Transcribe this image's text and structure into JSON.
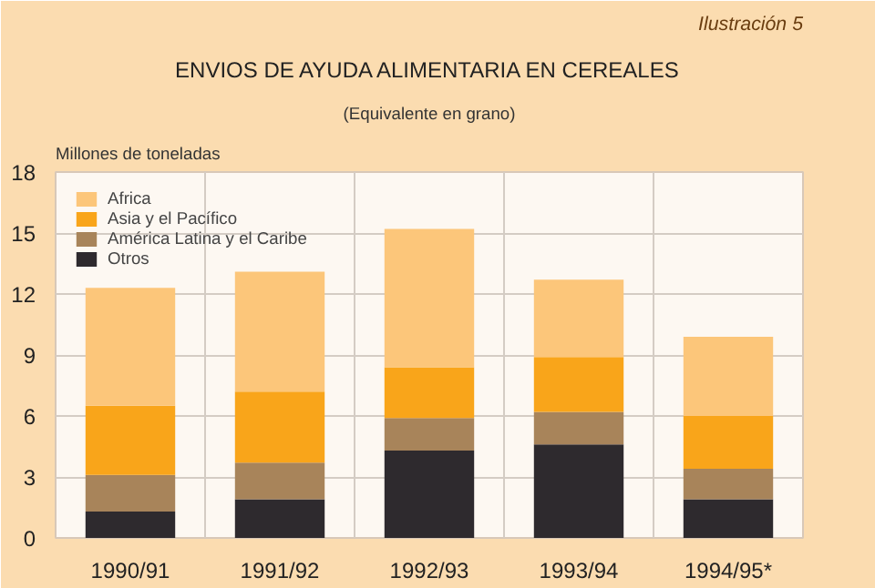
{
  "chart_data": {
    "type": "bar",
    "stacked": true,
    "title": "ENVIOS DE AYUDA ALIMENTARIA EN CEREALES",
    "subtitle": "(Equivalente en grano)",
    "ylabel": "Millones de toneladas",
    "annotations": [
      "Ilustración 5"
    ],
    "categories": [
      "1990/91",
      "1991/92",
      "1992/93",
      "1993/94",
      "1994/95*"
    ],
    "series": [
      {
        "name": "Otros",
        "color": "#2e2a2e",
        "values": [
          1.3,
          1.9,
          4.3,
          4.6,
          1.9
        ]
      },
      {
        "name": "América Latina y el Caribe",
        "color": "#a8845a",
        "values": [
          1.8,
          1.8,
          1.6,
          1.6,
          1.5
        ]
      },
      {
        "name": "Asia y el Pacífico",
        "color": "#f9a51a",
        "values": [
          3.4,
          3.5,
          2.5,
          2.7,
          2.6
        ]
      },
      {
        "name": "Africa",
        "color": "#fcc67a",
        "values": [
          5.8,
          5.9,
          6.8,
          3.8,
          3.9
        ]
      }
    ],
    "ylim": [
      0,
      18
    ],
    "yticks": [
      0,
      3,
      6,
      9,
      12,
      15,
      18
    ],
    "grid": true,
    "legend": "top left"
  }
}
